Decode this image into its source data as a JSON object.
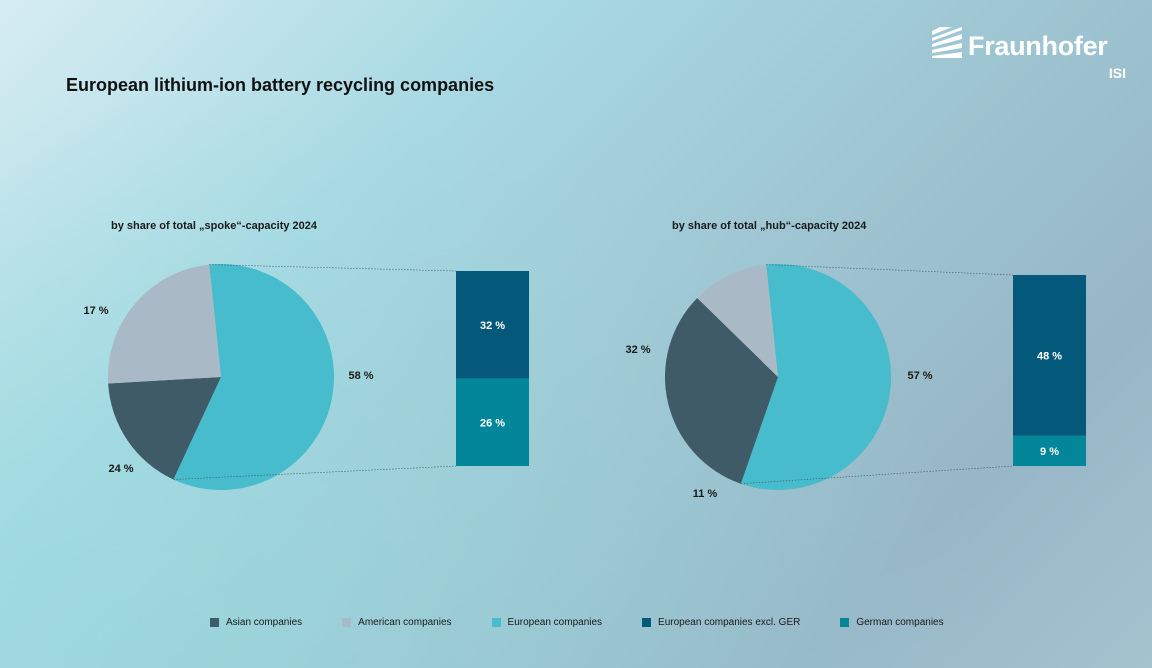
{
  "title": "European lithium-ion battery recycling companies",
  "logo": {
    "name": "Fraunhofer",
    "sub": "ISI"
  },
  "colors": {
    "asian": "#3f5b68",
    "american": "#a9b9c6",
    "european": "#47bccc",
    "european_excl_ger": "#04587a",
    "german": "#03869a"
  },
  "legend": [
    {
      "label": "Asian companies",
      "color": "#3f5b68"
    },
    {
      "label": "American companies",
      "color": "#a9b9c6"
    },
    {
      "label": "European companies",
      "color": "#47bccc"
    },
    {
      "label": "European companies excl. GER",
      "color": "#04587a"
    },
    {
      "label": "German companies",
      "color": "#03869a"
    }
  ],
  "chart_data": [
    {
      "type": "pie",
      "title": "by share of total „spoke“-capacity 2024",
      "slices": [
        {
          "label": "Asian companies",
          "value": 17,
          "display": "17 %"
        },
        {
          "label": "American companies",
          "value": 24,
          "display": "24 %"
        },
        {
          "label": "European companies",
          "value": 58,
          "display": "58 %"
        }
      ],
      "breakdown": {
        "of": "European companies",
        "parts": [
          {
            "label": "European companies excl. GER",
            "value": 32,
            "display": "32 %"
          },
          {
            "label": "German companies",
            "value": 26,
            "display": "26 %"
          }
        ]
      }
    },
    {
      "type": "pie",
      "title": "by share of total „hub“-capacity 2024",
      "slices": [
        {
          "label": "Asian companies",
          "value": 32,
          "display": "32 %"
        },
        {
          "label": "American companies",
          "value": 11,
          "display": "11 %"
        },
        {
          "label": "European companies",
          "value": 57,
          "display": "57 %"
        }
      ],
      "breakdown": {
        "of": "European companies",
        "parts": [
          {
            "label": "European companies excl. GER",
            "value": 48,
            "display": "48 %"
          },
          {
            "label": "German companies",
            "value": 9,
            "display": "9 %"
          }
        ]
      }
    }
  ]
}
